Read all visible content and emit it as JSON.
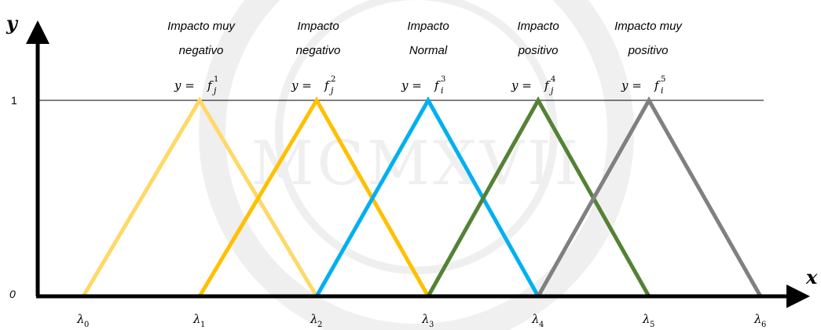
{
  "axes": {
    "x_label": "x",
    "y_label": "y",
    "y_tick_zero": "0",
    "y_tick_one": "1"
  },
  "functions": [
    {
      "category_line1": "Impacto muy",
      "category_line2": "negativo",
      "formula_lhs": "y = ",
      "formula_f": "f",
      "formula_sub": "j",
      "formula_sup": "1",
      "color": "#FFD966"
    },
    {
      "category_line1": "Impacto",
      "category_line2": "negativo",
      "formula_lhs": "y = ",
      "formula_f": "f",
      "formula_sub": "j",
      "formula_sup": "2",
      "color": "#FFC000"
    },
    {
      "category_line1": "Impacto",
      "category_line2": "Normal",
      "formula_lhs": "y = ",
      "formula_f": "f",
      "formula_sub": "i",
      "formula_sup": "3",
      "color": "#00B0F0"
    },
    {
      "category_line1": "Impacto",
      "category_line2": "positivo",
      "formula_lhs": "y = ",
      "formula_f": "f",
      "formula_sub": "j",
      "formula_sup": "4",
      "color": "#548235"
    },
    {
      "category_line1": "Impacto muy",
      "category_line2": "positivo",
      "formula_lhs": "y = ",
      "formula_f": "f",
      "formula_sub": "i",
      "formula_sup": "5",
      "color": "#808080"
    }
  ],
  "lambdas": [
    {
      "symbol": "λ",
      "sub": "0"
    },
    {
      "symbol": "λ",
      "sub": "1"
    },
    {
      "symbol": "λ",
      "sub": "2"
    },
    {
      "symbol": "λ",
      "sub": "3"
    },
    {
      "symbol": "λ",
      "sub": "4"
    },
    {
      "symbol": "λ",
      "sub": "5"
    },
    {
      "symbol": "λ",
      "sub": "6"
    }
  ]
}
